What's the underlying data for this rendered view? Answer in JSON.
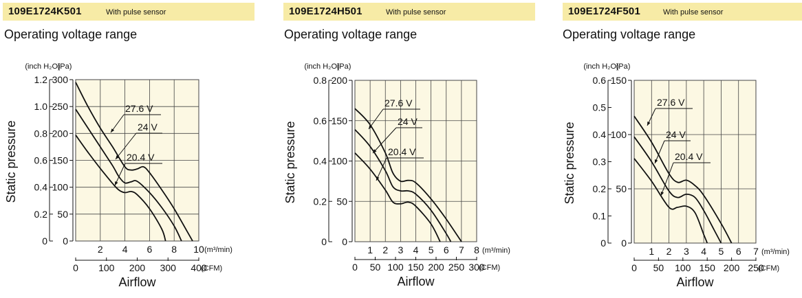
{
  "panels": [
    {
      "model": "109E1724K501",
      "sensor": "With pulse sensor",
      "subtitle": "Operating voltage range"
    },
    {
      "model": "109E1724H501",
      "sensor": "With pulse sensor",
      "subtitle": "Operating voltage range"
    },
    {
      "model": "109E1724F501",
      "sensor": "With pulse sensor",
      "subtitle": "Operating voltage range"
    }
  ],
  "colors": {
    "plot_bg": "#fcf8e3",
    "header_bg": "#f7eba6",
    "grid": "#444444",
    "curve": "#111111"
  },
  "chart_data": [
    {
      "type": "line",
      "title": "109E1724K501",
      "ylabel": "Static pressure",
      "xlabel": "Airflow",
      "y_unit_left": "(inch H₂O)",
      "y_unit_right": "(Pa)",
      "x_unit_top": "(m³/min)",
      "x_unit_bottom": "(CFM)",
      "x_top_lim": [
        0,
        10
      ],
      "x_top_ticks": [
        2,
        4,
        6,
        8,
        10
      ],
      "x_top_labels": [
        "2",
        "4",
        "6",
        "8",
        "10"
      ],
      "x_bottom_lim": [
        0,
        400
      ],
      "x_bottom_ticks": [
        0,
        100,
        200,
        300,
        400
      ],
      "x_bottom_labels": [
        "0",
        "100",
        "200",
        "300",
        "400"
      ],
      "y_pa_lim": [
        0,
        300
      ],
      "y_pa_ticks": [
        0,
        50,
        100,
        150,
        200,
        250,
        300
      ],
      "y_pa_labels": [
        "0",
        "50",
        "100",
        "150",
        "200",
        "250",
        "300"
      ],
      "y_inch_lim": [
        0,
        1.2
      ],
      "y_inch_ticks": [
        0,
        0.2,
        0.4,
        0.6,
        0.8,
        1.0,
        1.2
      ],
      "y_inch_labels": [
        "0",
        "0.2",
        "0.4",
        "0.6",
        "0.8",
        "1.0",
        "1.2"
      ],
      "grid": true,
      "series": [
        {
          "name": "27.6 V",
          "x": [
            0,
            1,
            2,
            3,
            4,
            4.5,
            5,
            5.5,
            6,
            7,
            8,
            9,
            9.5
          ],
          "y": [
            295,
            250,
            210,
            175,
            138,
            132,
            134,
            138,
            127,
            95,
            60,
            20,
            0
          ]
        },
        {
          "name": "24 V",
          "x": [
            0,
            1,
            2,
            3,
            3.5,
            4,
            4.5,
            5,
            6,
            7,
            8,
            8.6
          ],
          "y": [
            245,
            210,
            175,
            140,
            120,
            108,
            110,
            111,
            90,
            62,
            28,
            0
          ]
        },
        {
          "name": "20.4 V",
          "x": [
            0,
            1,
            2,
            3,
            3.5,
            4,
            4.5,
            5,
            6,
            7,
            7.3
          ],
          "y": [
            197,
            165,
            135,
            107,
            95,
            90,
            92,
            86,
            60,
            22,
            0
          ]
        }
      ],
      "labels": [
        {
          "text": "27.6 V",
          "series": "27.6 V"
        },
        {
          "text": "24 V",
          "series": "24 V"
        },
        {
          "text": "20.4 V",
          "series": "20.4 V"
        }
      ]
    },
    {
      "type": "line",
      "title": "109E1724H501",
      "ylabel": "Static pressure",
      "xlabel": "Airflow",
      "y_unit_left": "(inch H₂O)",
      "y_unit_right": "(Pa)",
      "x_unit_top": "(m³/min)",
      "x_unit_bottom": "(CFM)",
      "x_top_lim": [
        0,
        8
      ],
      "x_top_ticks": [
        1,
        2,
        3,
        4,
        5,
        6,
        7,
        8
      ],
      "x_top_labels": [
        "1",
        "2",
        "3",
        "4",
        "5",
        "6",
        "7",
        "8"
      ],
      "x_bottom_lim": [
        0,
        300
      ],
      "x_bottom_ticks": [
        0,
        50,
        100,
        150,
        200,
        250,
        300
      ],
      "x_bottom_labels": [
        "0",
        "50",
        "100",
        "150",
        "200",
        "250",
        "300"
      ],
      "y_pa_lim": [
        0,
        200
      ],
      "y_pa_ticks": [
        0,
        50,
        100,
        150,
        200
      ],
      "y_pa_labels": [
        "0",
        "50",
        "100",
        "150",
        "200"
      ],
      "y_inch_lim": [
        0,
        0.8
      ],
      "y_inch_ticks": [
        0,
        0.2,
        0.4,
        0.6,
        0.8
      ],
      "y_inch_labels": [
        "0",
        "0.2",
        "0.4",
        "0.6",
        "0.8"
      ],
      "grid": true,
      "series": [
        {
          "name": "27.6 V",
          "x": [
            0,
            1,
            2,
            2.5,
            3,
            3.5,
            4,
            5,
            6,
            7
          ],
          "y": [
            165,
            145,
            110,
            85,
            75,
            76,
            73,
            53,
            28,
            0
          ]
        },
        {
          "name": "24 V",
          "x": [
            0,
            1,
            2,
            2.5,
            3,
            3.5,
            4,
            5,
            6,
            6.3
          ],
          "y": [
            139,
            118,
            88,
            68,
            63,
            63,
            59,
            39,
            10,
            0
          ]
        },
        {
          "name": "20.4 V",
          "x": [
            0,
            1,
            2,
            2.5,
            3,
            3.5,
            4,
            5,
            5.6
          ],
          "y": [
            110,
            90,
            64,
            49,
            47,
            49,
            44,
            22,
            0
          ]
        }
      ],
      "labels": [
        {
          "text": "27.6 V",
          "series": "27.6 V"
        },
        {
          "text": "24 V",
          "series": "24 V"
        },
        {
          "text": "20.4 V",
          "series": "20.4 V"
        }
      ]
    },
    {
      "type": "line",
      "title": "109E1724F501",
      "ylabel": "Static pressure",
      "xlabel": "Airflow",
      "y_unit_left": "(inch H₂O)",
      "y_unit_right": "(Pa)",
      "x_unit_top": "(m³/min)",
      "x_unit_bottom": "(CFM)",
      "x_top_lim": [
        0,
        7
      ],
      "x_top_ticks": [
        1,
        2,
        3,
        4,
        5,
        6,
        7
      ],
      "x_top_labels": [
        "1",
        "2",
        "3",
        "4",
        "5",
        "6",
        "7"
      ],
      "x_bottom_lim": [
        0,
        250
      ],
      "x_bottom_ticks": [
        0,
        50,
        100,
        150,
        200,
        250
      ],
      "x_bottom_labels": [
        "0",
        "50",
        "100",
        "150",
        "200",
        "250"
      ],
      "y_pa_lim": [
        0,
        150
      ],
      "y_pa_ticks": [
        0,
        50,
        100,
        150
      ],
      "y_pa_labels": [
        "0",
        "50",
        "100",
        "150"
      ],
      "y_inch_lim": [
        0,
        0.6
      ],
      "y_inch_ticks": [
        0,
        0.1,
        0.2,
        0.3,
        0.4,
        0.5,
        0.6
      ],
      "y_inch_labels": [
        "0",
        "0.1",
        "0.2",
        "0.3",
        "0.4",
        "0.5",
        "0.6"
      ],
      "grid": true,
      "series": [
        {
          "name": "27.6 V",
          "x": [
            0,
            1,
            2,
            2.5,
            3,
            3.5,
            4,
            5,
            5.6
          ],
          "y": [
            117,
            93,
            64,
            56,
            58,
            53,
            44,
            18,
            0
          ]
        },
        {
          "name": "24 V",
          "x": [
            0,
            1,
            2,
            2.5,
            3,
            3.5,
            4,
            4.6,
            5
          ],
          "y": [
            98,
            75,
            48,
            42,
            45,
            42,
            30,
            12,
            0
          ]
        },
        {
          "name": "20.4 V",
          "x": [
            0,
            1,
            2,
            2.5,
            3,
            3.5,
            4,
            4.2
          ],
          "y": [
            78,
            57,
            33,
            33,
            34,
            28,
            8,
            0
          ]
        }
      ],
      "labels": [
        {
          "text": "27.6 V",
          "series": "27.6 V"
        },
        {
          "text": "24 V",
          "series": "24 V"
        },
        {
          "text": "20.4 V",
          "series": "20.4 V"
        }
      ]
    }
  ]
}
